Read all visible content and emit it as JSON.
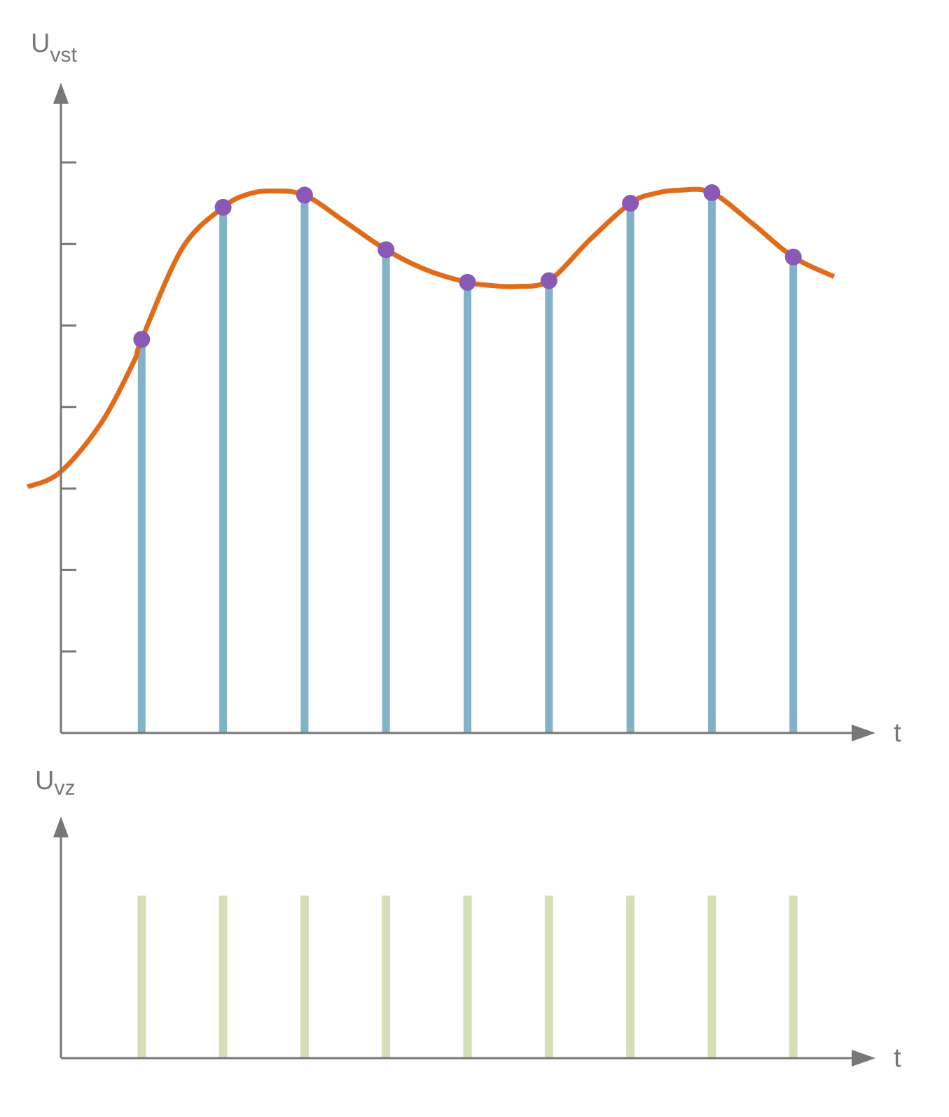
{
  "top_panel": {
    "y_label_main": "U",
    "y_label_sub": "vst",
    "x_label": "t",
    "y_ticks": [
      1,
      2,
      3,
      4,
      5,
      6,
      7
    ],
    "y_range": [
      0,
      7
    ],
    "x_range": [
      -0.4,
      10.1
    ],
    "sample_times": [
      1,
      2,
      3,
      4,
      5,
      6,
      7,
      8,
      9
    ],
    "sample_values": [
      4.83,
      6.45,
      6.6,
      5.93,
      5.53,
      5.55,
      6.5,
      6.63,
      5.84
    ],
    "signal_curve": [
      [
        -0.4,
        3.02
      ],
      [
        0,
        3.2
      ],
      [
        0.5,
        3.8
      ],
      [
        0.9,
        4.55
      ],
      [
        1,
        4.83
      ],
      [
        1.5,
        5.95
      ],
      [
        2,
        6.45
      ],
      [
        2.3,
        6.61
      ],
      [
        2.6,
        6.65
      ],
      [
        3,
        6.6
      ],
      [
        3.5,
        6.27
      ],
      [
        4,
        5.93
      ],
      [
        4.5,
        5.68
      ],
      [
        5,
        5.53
      ],
      [
        5.3,
        5.49
      ],
      [
        5.6,
        5.48
      ],
      [
        6,
        5.55
      ],
      [
        6.5,
        6.05
      ],
      [
        7,
        6.5
      ],
      [
        7.3,
        6.62
      ],
      [
        7.6,
        6.66
      ],
      [
        8,
        6.63
      ],
      [
        8.5,
        6.25
      ],
      [
        9,
        5.84
      ],
      [
        9.5,
        5.6
      ]
    ],
    "colors": {
      "curve": "#e06c1a",
      "stem": "#82b2c8",
      "point": "#8a58b6",
      "axis": "#777777"
    }
  },
  "bottom_panel": {
    "y_label_main": "U",
    "y_label_sub": "vz",
    "x_label": "t",
    "y_range": [
      0,
      2
    ],
    "pulse_times": [
      1,
      2,
      3,
      4,
      5,
      6,
      7,
      8,
      9
    ],
    "pulse_height": 1,
    "colors": {
      "pulse": "#d4dfb8",
      "axis": "#777777"
    }
  }
}
